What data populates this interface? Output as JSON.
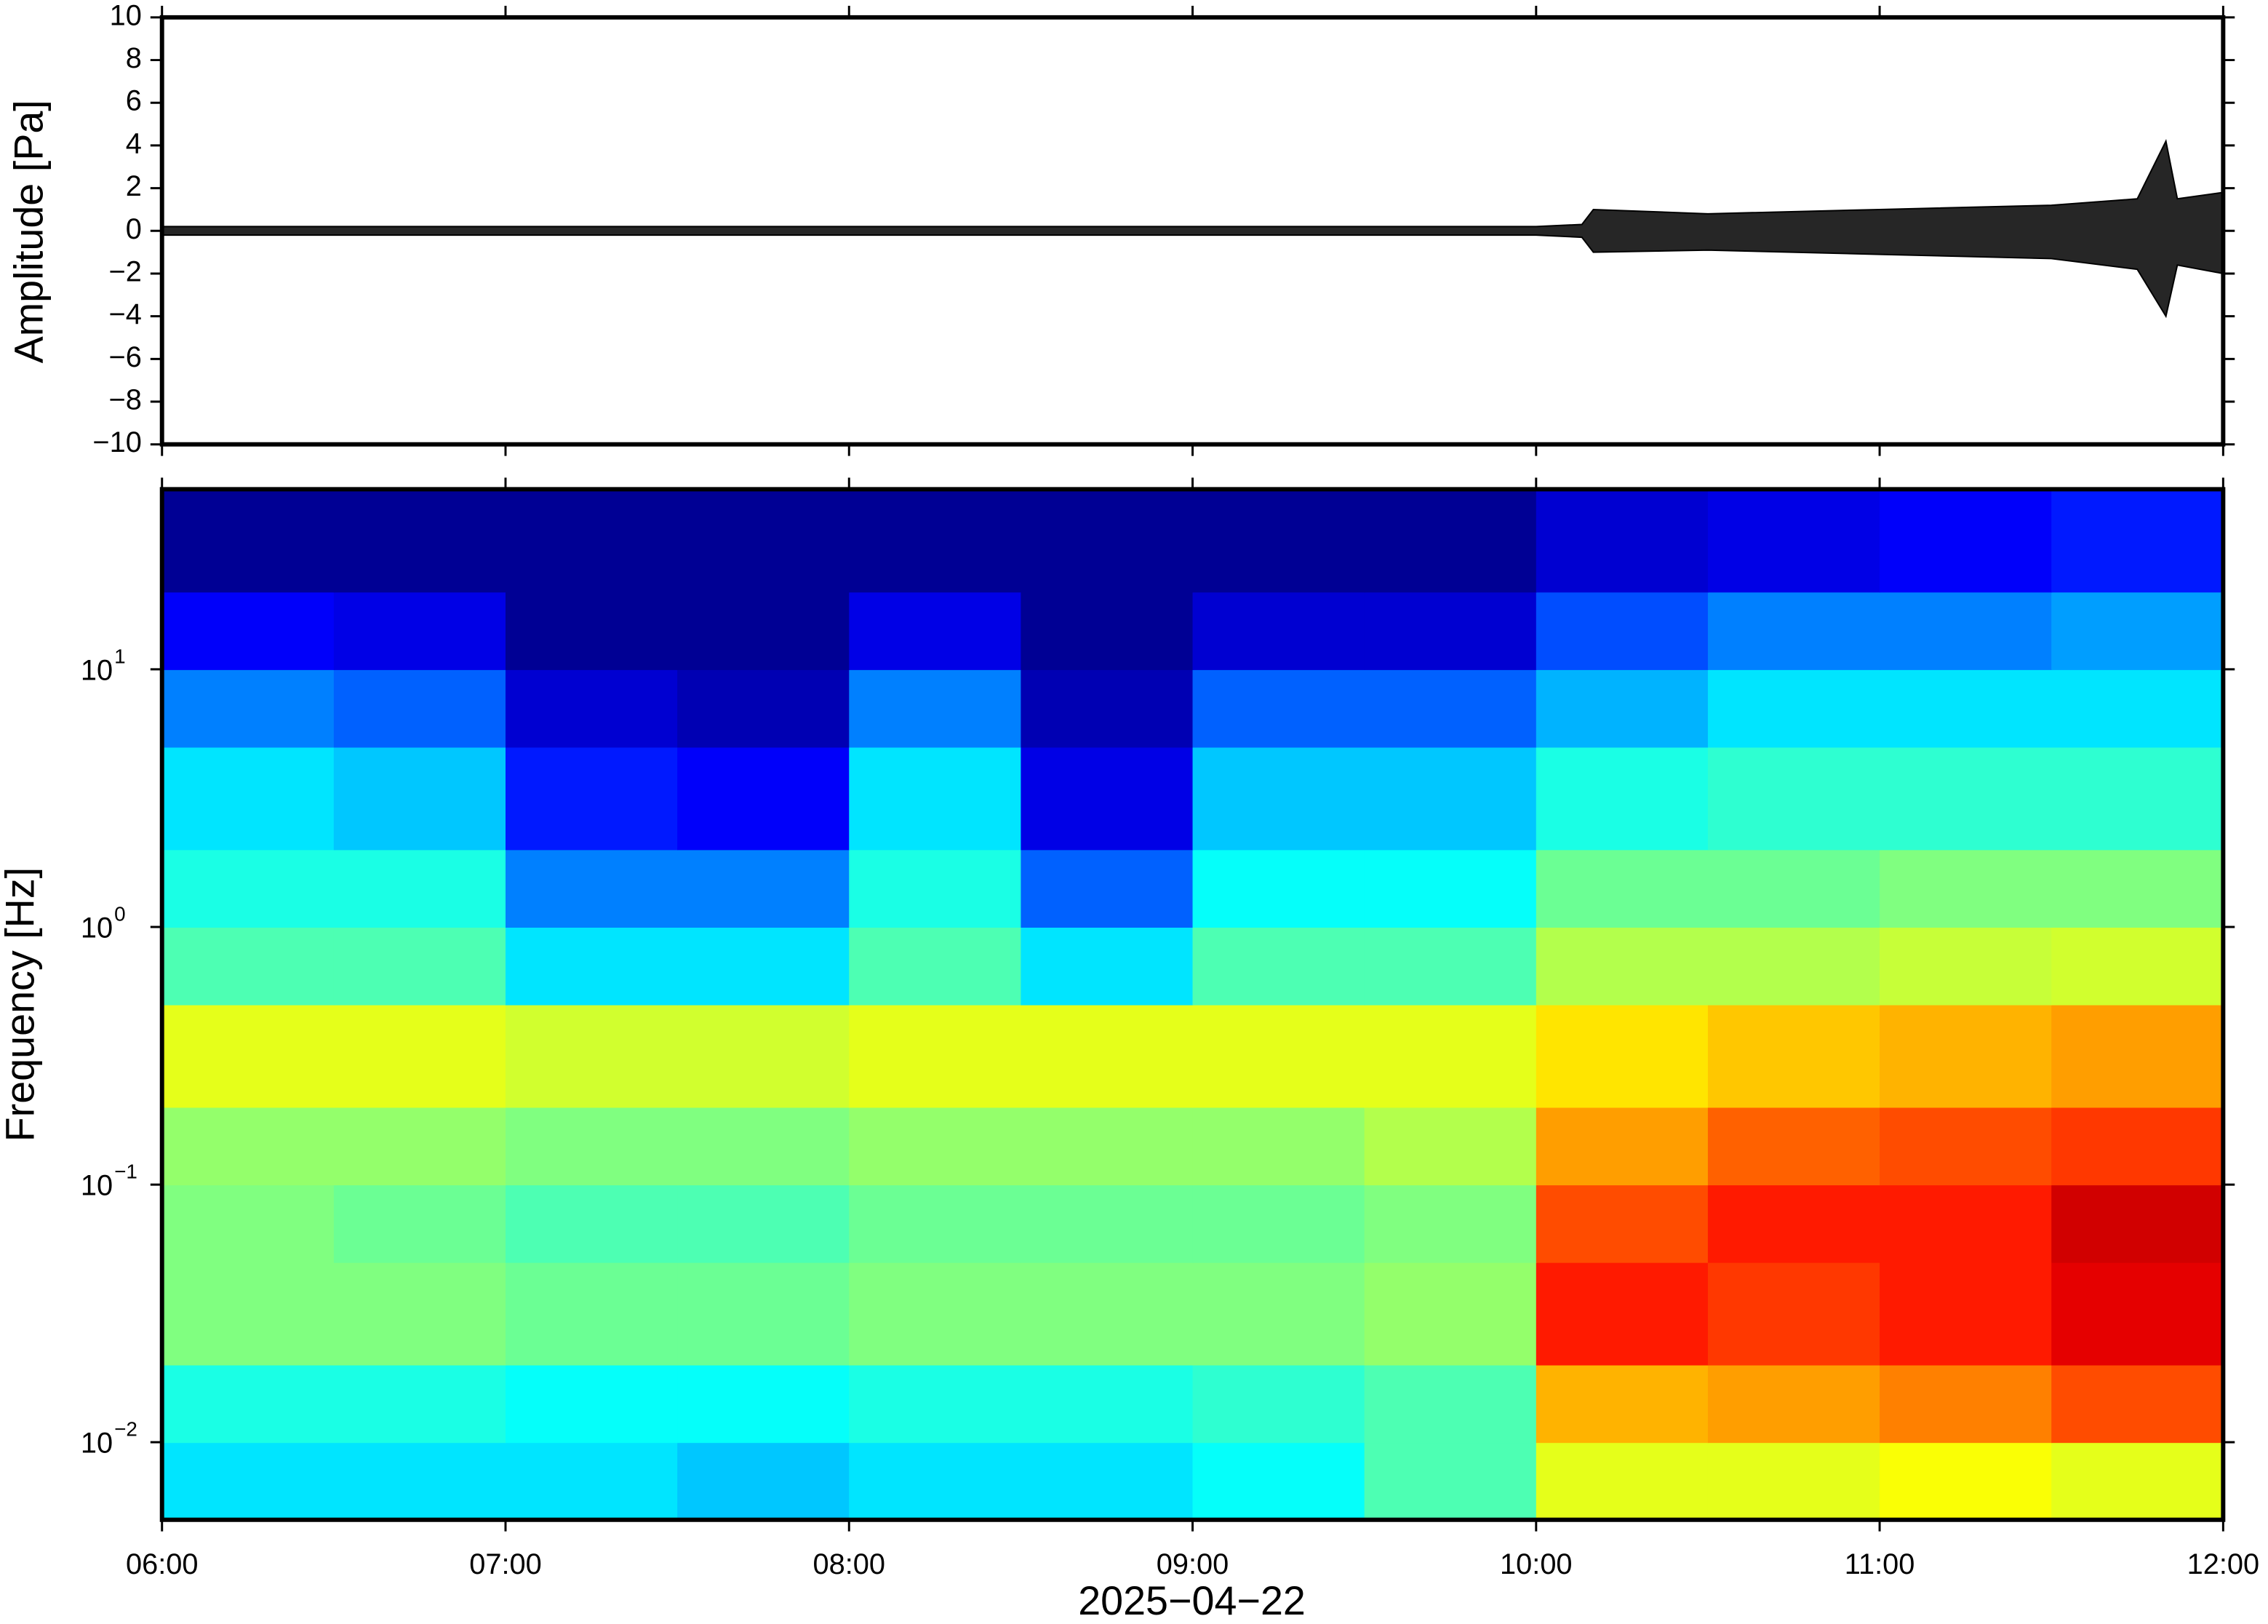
{
  "chart_data": [
    {
      "type": "line",
      "y_label": "Amplitude [Pa]",
      "x": [
        "06:00",
        "06:30",
        "07:00",
        "07:30",
        "08:00",
        "08:30",
        "09:00",
        "09:30",
        "10:00",
        "10:08",
        "10:10",
        "10:30",
        "11:00",
        "11:30",
        "11:45",
        "11:50",
        "11:52",
        "12:00"
      ],
      "series": [
        {
          "name": "upper",
          "color": "#000000",
          "values": [
            0.2,
            0.2,
            0.2,
            0.2,
            0.2,
            0.2,
            0.2,
            0.2,
            0.2,
            0.3,
            1.0,
            0.8,
            1.0,
            1.2,
            1.5,
            4.2,
            1.5,
            1.8
          ]
        },
        {
          "name": "lower",
          "color": "#000000",
          "values": [
            -0.2,
            -0.2,
            -0.2,
            -0.2,
            -0.2,
            -0.2,
            -0.2,
            -0.2,
            -0.2,
            -0.3,
            -1.0,
            -0.9,
            -1.1,
            -1.3,
            -1.8,
            -4.0,
            -1.6,
            -2.0
          ]
        }
      ],
      "xlim": [
        "06:00",
        "12:00"
      ],
      "xticks": [
        "06:00",
        "07:00",
        "08:00",
        "09:00",
        "10:00",
        "11:00",
        "12:00"
      ],
      "ylim": [
        -10,
        10
      ],
      "yticks": [
        {
          "value": -10,
          "label": "−10"
        },
        {
          "value": -8,
          "label": "−8"
        },
        {
          "value": -6,
          "label": "−6"
        },
        {
          "value": -4,
          "label": "−4"
        },
        {
          "value": -2,
          "label": "−2"
        },
        0,
        2,
        4,
        6,
        8,
        10
      ]
    },
    {
      "type": "heatmap",
      "y_label": "Frequency [Hz]",
      "x_label": "2025−04−22",
      "log_y": true,
      "colormap": "jet",
      "time_bins": [
        "06:00",
        "06:30",
        "07:00",
        "07:30",
        "08:00",
        "08:30",
        "09:00",
        "09:30",
        "10:00",
        "10:30",
        "11:00",
        "11:30",
        "12:00"
      ],
      "frequency_bins": [
        0.005,
        0.01,
        0.02,
        0.05,
        0.1,
        0.2,
        0.5,
        1,
        2,
        5,
        10,
        20,
        50
      ],
      "values": [
        [
          0.35,
          0.35,
          0.35,
          0.32,
          0.35,
          0.35,
          0.38,
          0.45,
          0.6,
          0.6,
          0.62,
          0.6
        ],
        [
          0.4,
          0.4,
          0.38,
          0.38,
          0.4,
          0.4,
          0.42,
          0.45,
          0.7,
          0.72,
          0.75,
          0.8
        ],
        [
          0.5,
          0.5,
          0.48,
          0.48,
          0.5,
          0.5,
          0.5,
          0.52,
          0.85,
          0.82,
          0.85,
          0.9
        ],
        [
          0.5,
          0.48,
          0.45,
          0.45,
          0.48,
          0.48,
          0.48,
          0.5,
          0.8,
          0.85,
          0.85,
          0.92
        ],
        [
          0.52,
          0.52,
          0.5,
          0.5,
          0.52,
          0.52,
          0.52,
          0.55,
          0.72,
          0.78,
          0.8,
          0.82
        ],
        [
          0.6,
          0.6,
          0.58,
          0.58,
          0.6,
          0.6,
          0.6,
          0.6,
          0.65,
          0.68,
          0.7,
          0.72
        ],
        [
          0.45,
          0.45,
          0.35,
          0.35,
          0.45,
          0.35,
          0.45,
          0.45,
          0.55,
          0.55,
          0.57,
          0.58
        ],
        [
          0.4,
          0.4,
          0.25,
          0.25,
          0.4,
          0.22,
          0.38,
          0.38,
          0.48,
          0.48,
          0.5,
          0.5
        ],
        [
          0.35,
          0.32,
          0.15,
          0.12,
          0.35,
          0.1,
          0.32,
          0.32,
          0.4,
          0.42,
          0.42,
          0.42
        ],
        [
          0.25,
          0.22,
          0.08,
          0.05,
          0.25,
          0.05,
          0.22,
          0.22,
          0.3,
          0.35,
          0.35,
          0.35
        ],
        [
          0.12,
          0.1,
          0.02,
          0.02,
          0.1,
          0.02,
          0.08,
          0.08,
          0.2,
          0.25,
          0.25,
          0.28
        ],
        [
          0.02,
          0.02,
          0.02,
          0.02,
          0.02,
          0.02,
          0.02,
          0.02,
          0.08,
          0.1,
          0.12,
          0.15
        ]
      ],
      "xlim": [
        "06:00",
        "12:00"
      ],
      "xticks": [
        "06:00",
        "07:00",
        "08:00",
        "09:00",
        "10:00",
        "11:00",
        "12:00"
      ],
      "ylim": [
        0.005,
        50
      ],
      "yticks": [
        {
          "value": 0.01,
          "label": "10",
          "exponent": "−2"
        },
        {
          "value": 0.1,
          "label": "10",
          "exponent": "−1"
        },
        {
          "value": 1,
          "label": "10",
          "exponent": "0"
        },
        {
          "value": 10,
          "label": "10",
          "exponent": "1"
        }
      ]
    }
  ]
}
